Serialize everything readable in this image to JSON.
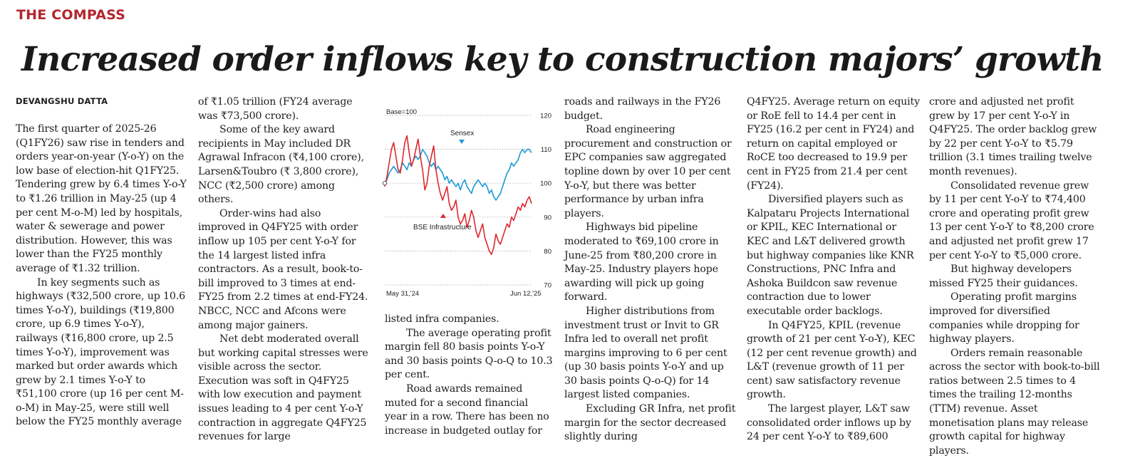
{
  "kicker": "THE COMPASS",
  "headline": "Increased order inflows key to construction majors’ growth",
  "byline": "DEVANGSHU DATTA",
  "columns": [
    {
      "paragraphs": [
        "The first quarter of 2025-26 (Q1FY26) saw rise in tenders and orders year-on-year (Y-o-Y) on the low base of election-hit Q1FY25. Tendering grew by 6.4 times Y-o-Y to ₹1.26 trillion in May-25 (up 4 per cent M-o-M) led by hospitals, water & sewerage and power distribution. However, this was lower than the FY25 monthly average of ₹1.32 trillion.",
        "In key segments such as highways (₹32,500 crore, up 10.6 times Y-o-Y), buildings (₹19,800 crore, up 6.9 times Y-o-Y), railways (₹16,800 crore, up 2.5 times Y-o-Y), improvement was marked but order awards which grew by 2.1 times Y-o-Y to ₹51,100 crore (up 16 per cent M-o-M) in May-25, were still well below the FY25 monthly average"
      ]
    },
    {
      "paragraphs": [
        "of ₹1.05 trillion (FY24 average was ₹73,500 crore).",
        "Some of the key award recipients in May included DR Agrawal Infracon (₹4,100 crore), Larsen&Toubro (₹ 3,800 crore), NCC (₹2,500 crore) among others.",
        "Order-wins had also improved in Q4FY25 with order inflow up 105 per cent Y-o-Y for the 14 largest listed infra contractors. As a result, book-to-bill improved to 3 times at end-FY25 from 2.2 times at end-FY24. NBCC, NCC and Afcons were among major gainers.",
        "Net debt moderated overall but working capital stresses were visible across the sector. Execution was soft in Q4FY25 with low execution and payment issues leading to 4 per cent Y-o-Y contraction in aggregate Q4FY25 revenues for large"
      ]
    },
    {
      "paragraphs": [
        "listed infra companies.",
        "The average operating profit margin fell 80 basis points Y-o-Y and 30 basis points Q-o-Q to 10.3 per cent.",
        "Road awards remained muted for a second financial year in a row. There has been no increase in budgeted outlay for"
      ]
    },
    {
      "paragraphs": [
        "roads and railways in the FY26 budget.",
        "Road engineering procurement and construction or EPC companies saw aggregated topline down by over 10 per cent Y-o-Y, but there was better performance by urban infra players.",
        "Highways bid pipeline moderated to ₹69,100 crore in June-25 from ₹80,200 crore in May-25. Industry players hope awarding will pick up going forward.",
        "Higher distributions from investment trust or Invit to GR Infra led to overall net profit margins improving to 6 per cent (up 30 basis points Y-o-Y and up 30 basis points Q-o-Q) for 14 largest listed companies.",
        "Excluding GR Infra, net profit margin for the sector decreased slightly during"
      ]
    },
    {
      "paragraphs": [
        "Q4FY25. Average return on equity or RoE fell to 14.4 per cent in FY25 (16.2 per cent in FY24) and return on capital employed or RoCE too decreased to 19.9 per cent in FY25 from 21.4 per cent (FY24).",
        "Diversified players such as Kalpataru Projects International or KPIL, KEC International or KEC and L&T delivered growth but highway companies like KNR Constructions, PNC Infra and Ashoka Buildcon saw revenue contraction due to lower executable order backlogs.",
        "In Q4FY25, KPIL (revenue growth of 21 per cent Y-o-Y), KEC (12 per cent revenue growth) and L&T (revenue growth of 11 per cent) saw satisfactory revenue growth.",
        "The largest player, L&T saw consolidated order inflows up by 24 per cent Y-o-Y to ₹89,600"
      ]
    },
    {
      "paragraphs": [
        "crore and adjusted net profit grew by 17 per cent Y-o-Y in Q4FY25. The order backlog grew by 22 per cent Y-o-Y to ₹5.79 trillion (3.1 times trailing twelve month revenues).",
        "Consolidated revenue grew by 11 per cent Y-o-Y to ₹74,400 crore and operating profit grew 13 per cent Y-o-Y to ₹8,200 crore and adjusted net profit grew 17 per cent Y-o-Y to ₹5,000 crore.",
        "But highway developers missed FY25 their guidances.",
        "Operating profit margins improved for diversified companies while dropping for highway players.",
        "Orders remain reasonable across the sector with book-to-bill ratios between 2.5 times to 4 times the trailing 12-months (TTM) revenue. Asset monetisation plans may release growth capital for highway players."
      ]
    }
  ],
  "chart_data": {
    "type": "line",
    "base_label": "Base=100",
    "ylim": [
      70,
      120
    ],
    "yticks": [
      "120",
      "110",
      "100",
      "90",
      "80",
      "70"
    ],
    "ytick_values": [
      120,
      110,
      100,
      90,
      80,
      70
    ],
    "x_start_label": "May 31,'24",
    "x_end_label": "Jun 12,'25",
    "series": [
      {
        "name": "Sensex",
        "color": "#1a9ad6",
        "values": [
          100,
          101,
          103,
          104,
          105,
          104,
          103,
          104,
          106,
          105,
          104,
          106,
          105,
          107,
          108,
          107,
          108,
          110,
          109,
          108,
          106,
          105,
          106,
          104,
          105,
          104,
          103,
          101,
          102,
          100,
          101,
          100,
          99,
          100,
          98,
          100,
          101,
          99,
          98,
          97,
          99,
          100,
          101,
          100,
          99,
          100,
          99,
          97,
          98,
          96,
          95,
          96,
          97,
          99,
          101,
          103,
          104,
          106,
          105,
          106,
          107,
          109,
          110,
          109,
          110,
          110,
          109
        ]
      },
      {
        "name": "BSE Infrastructure",
        "color": "#e0272e",
        "values": [
          99,
          102,
          106,
          110,
          112,
          108,
          104,
          103,
          107,
          112,
          114,
          109,
          105,
          107,
          110,
          113,
          108,
          104,
          98,
          100,
          105,
          108,
          111,
          104,
          100,
          97,
          95,
          97,
          99,
          94,
          92,
          93,
          95,
          90,
          88,
          89,
          91,
          87,
          89,
          92,
          90,
          86,
          84,
          86,
          88,
          84,
          82,
          80,
          79,
          81,
          85,
          83,
          82,
          84,
          86,
          88,
          87,
          90,
          89,
          91,
          93,
          92,
          94,
          93,
          95,
          96,
          94
        ]
      }
    ]
  }
}
